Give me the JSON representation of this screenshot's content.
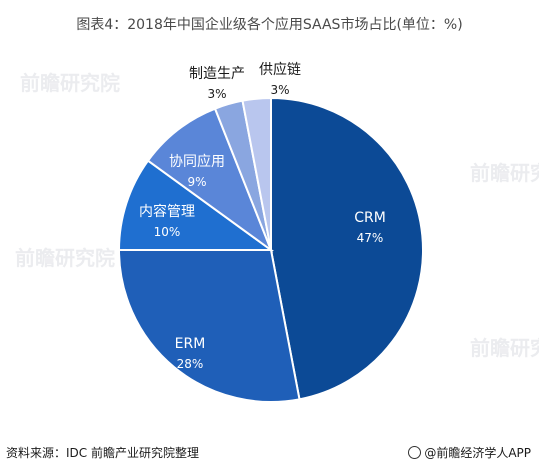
{
  "title": "图表4：2018年中国企业级各个应用SAAS市场占比(单位：%)",
  "source": "资料来源：IDC 前瞻产业研究院整理",
  "brand": "@前瞻经济学人APP",
  "watermark": "前瞻研究院",
  "chart_data": {
    "type": "pie",
    "title": "图表4：2018年中国企业级各个应用SAAS市场占比(单位：%)",
    "slices": [
      {
        "label": "CRM",
        "value": 47,
        "pct_label": "47%",
        "color": "#0c4a96"
      },
      {
        "label": "ERM",
        "value": 28,
        "pct_label": "28%",
        "color": "#1f5fb8"
      },
      {
        "label": "内容管理",
        "value": 10,
        "pct_label": "10%",
        "color": "#1f6fd0"
      },
      {
        "label": "协同应用",
        "value": 9,
        "pct_label": "9%",
        "color": "#5a86d8"
      },
      {
        "label": "制造生产",
        "value": 3,
        "pct_label": "3%",
        "color": "#8aa6e0"
      },
      {
        "label": "供应链",
        "value": 3,
        "pct_label": "3%",
        "color": "#b9c6ee"
      }
    ]
  }
}
